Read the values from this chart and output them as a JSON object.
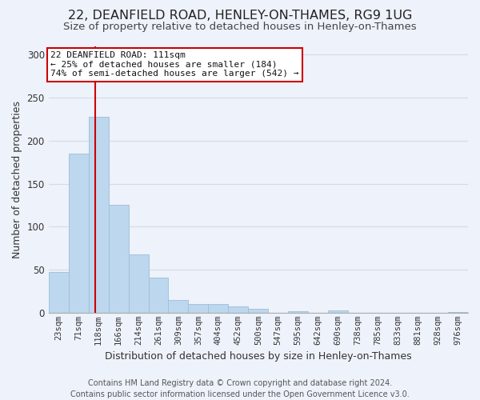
{
  "title": "22, DEANFIELD ROAD, HENLEY-ON-THAMES, RG9 1UG",
  "subtitle": "Size of property relative to detached houses in Henley-on-Thames",
  "xlabel": "Distribution of detached houses by size in Henley-on-Thames",
  "ylabel": "Number of detached properties",
  "bin_labels": [
    "23sqm",
    "71sqm",
    "118sqm",
    "166sqm",
    "214sqm",
    "261sqm",
    "309sqm",
    "357sqm",
    "404sqm",
    "452sqm",
    "500sqm",
    "547sqm",
    "595sqm",
    "642sqm",
    "690sqm",
    "738sqm",
    "785sqm",
    "833sqm",
    "881sqm",
    "928sqm",
    "976sqm"
  ],
  "bar_values": [
    47,
    185,
    228,
    125,
    68,
    41,
    15,
    10,
    10,
    7,
    5,
    0,
    2,
    0,
    3,
    0,
    0,
    0,
    0,
    0,
    1
  ],
  "bar_color": "#bdd7ee",
  "bar_edge_color": "#9bbfd8",
  "property_line_label": "22 DEANFIELD ROAD: 111sqm",
  "annotation_line1": "← 25% of detached houses are smaller (184)",
  "annotation_line2": "74% of semi-detached houses are larger (542) →",
  "ylim": [
    0,
    310
  ],
  "yticks": [
    0,
    50,
    100,
    150,
    200,
    250,
    300
  ],
  "annotation_box_color": "#ffffff",
  "annotation_box_edge": "#cc0000",
  "vline_color": "#cc0000",
  "footer_line1": "Contains HM Land Registry data © Crown copyright and database right 2024.",
  "footer_line2": "Contains public sector information licensed under the Open Government Licence v3.0.",
  "bg_color": "#eef2fa",
  "grid_color": "#d0dcea",
  "title_fontsize": 11.5,
  "subtitle_fontsize": 9.5,
  "axis_label_fontsize": 9,
  "tick_fontsize": 7.5,
  "footer_fontsize": 7
}
